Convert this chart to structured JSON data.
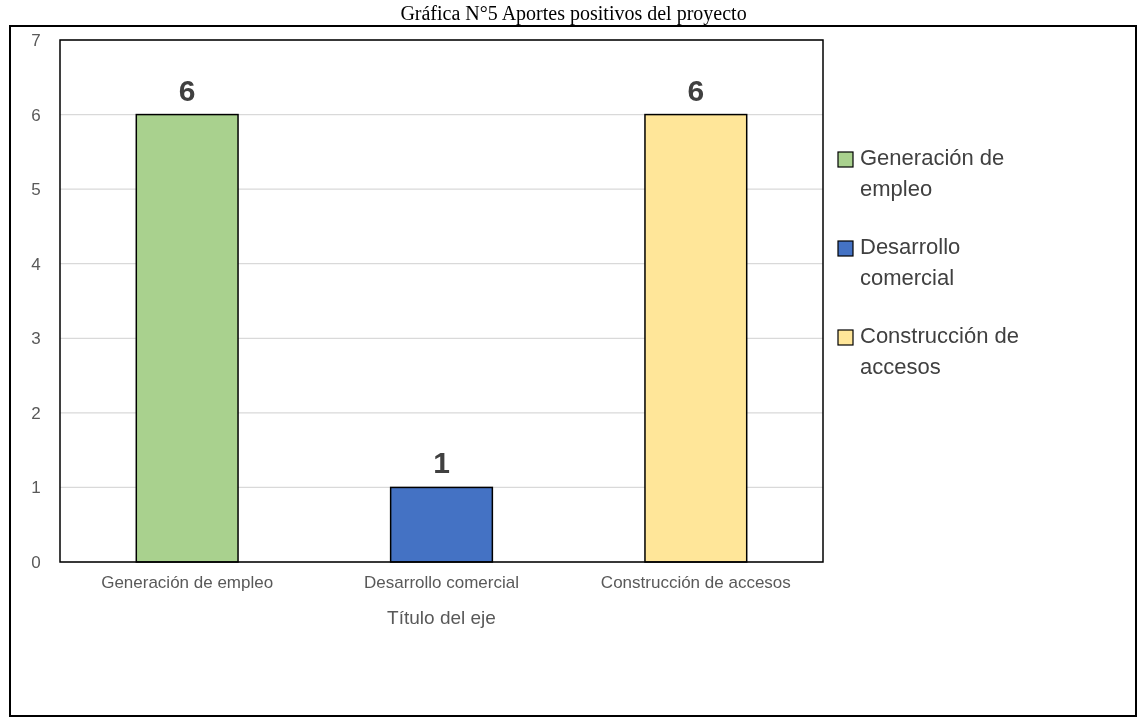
{
  "chart_data": {
    "type": "bar",
    "title": "Gráfica N°5 Aportes positivos del proyecto",
    "xlabel": "Título del eje",
    "categories": [
      "Generación de empleo",
      "Desarrollo comercial",
      "Construcción de accesos"
    ],
    "series": [
      {
        "name": "Generación de empleo",
        "color": "#a9d18e",
        "values": [
          6,
          null,
          null
        ]
      },
      {
        "name": "Desarrollo comercial",
        "color": "#4472c4",
        "values": [
          null,
          1,
          null
        ]
      },
      {
        "name": "Construcción de accesos",
        "color": "#ffe699",
        "values": [
          null,
          null,
          6
        ]
      }
    ],
    "ylim": [
      0,
      7
    ],
    "yticks": [
      0,
      1,
      2,
      3,
      4,
      5,
      6,
      7
    ],
    "grid": "y",
    "legend": "right",
    "data_labels": true
  }
}
